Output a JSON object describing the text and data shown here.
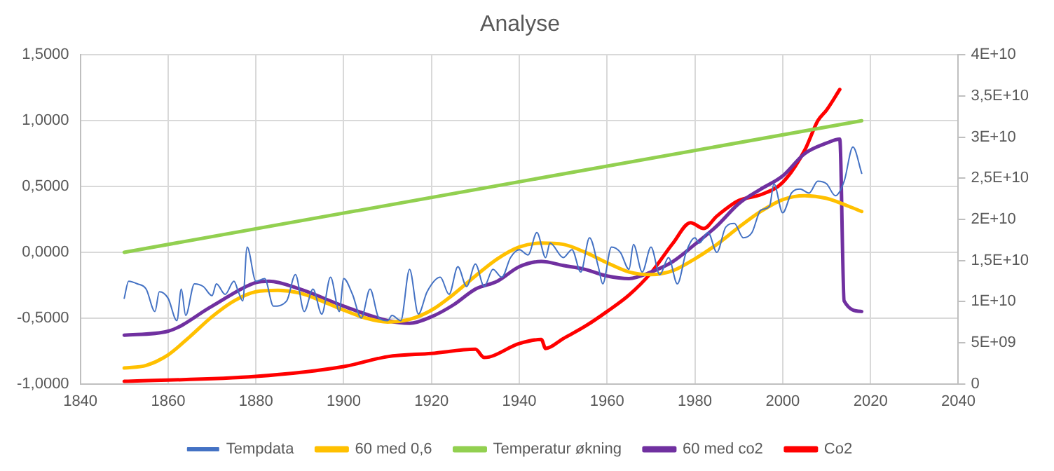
{
  "chart_data": {
    "type": "line",
    "title": "Analyse",
    "legend": "bottom",
    "grid": true,
    "marker": "none",
    "line_style": "solid",
    "xlim": [
      1840,
      2040
    ],
    "xticks": [
      1840,
      1860,
      1880,
      1900,
      1920,
      1940,
      1960,
      1980,
      2000,
      2020,
      2040
    ],
    "ylim": [
      -1,
      1.5
    ],
    "yticks": [
      {
        "value": -1,
        "label": "-1,0000"
      },
      {
        "value": -0.5,
        "label": "-0,5000"
      },
      {
        "value": 0,
        "label": "0,0000"
      },
      {
        "value": 0.5,
        "label": "0,5000"
      },
      {
        "value": 1,
        "label": "1,0000"
      },
      {
        "value": 1.5,
        "label": "1,5000"
      }
    ],
    "y2lim": [
      0,
      40000000000
    ],
    "y2ticks": [
      {
        "value": 0,
        "label": "0"
      },
      {
        "value": 5000000000,
        "label": "5E+09"
      },
      {
        "value": 10000000000,
        "label": "1E+10"
      },
      {
        "value": 15000000000,
        "label": "1,5E+10"
      },
      {
        "value": 20000000000,
        "label": "2E+10"
      },
      {
        "value": 25000000000,
        "label": "2,5E+10"
      },
      {
        "value": 30000000000,
        "label": "3E+10"
      },
      {
        "value": 35000000000,
        "label": "3,5E+10"
      },
      {
        "value": 40000000000,
        "label": "4E+10"
      }
    ],
    "series": [
      {
        "name": "Tempdata",
        "color": "#4472c4",
        "x": [
          1850,
          1851,
          1853,
          1855,
          1857,
          1858,
          1860,
          1862,
          1863,
          1864,
          1866,
          1868,
          1870,
          1871,
          1873,
          1875,
          1876,
          1877,
          1878,
          1880,
          1882,
          1884,
          1887,
          1889,
          1891,
          1893,
          1895,
          1897,
          1899,
          1900,
          1902,
          1904,
          1906,
          1908,
          1910,
          1911,
          1913,
          1915,
          1917,
          1919,
          1922,
          1924,
          1926,
          1928,
          1930,
          1932,
          1934,
          1936,
          1938,
          1940,
          1942,
          1944,
          1946,
          1947,
          1950,
          1952,
          1954,
          1956,
          1958,
          1959,
          1961,
          1963,
          1965,
          1966,
          1968,
          1970,
          1972,
          1974,
          1976,
          1978,
          1980,
          1981,
          1983,
          1985,
          1987,
          1989,
          1991,
          1993,
          1995,
          1997,
          1998,
          2000,
          2002,
          2004,
          2006,
          2008,
          2010,
          2012,
          2014,
          2016,
          2018
        ],
        "values": [
          -0.35,
          -0.22,
          -0.24,
          -0.28,
          -0.45,
          -0.3,
          -0.35,
          -0.52,
          -0.28,
          -0.48,
          -0.24,
          -0.26,
          -0.33,
          -0.24,
          -0.32,
          -0.22,
          -0.3,
          -0.37,
          0.04,
          -0.22,
          -0.2,
          -0.41,
          -0.37,
          -0.17,
          -0.45,
          -0.28,
          -0.47,
          -0.19,
          -0.45,
          -0.2,
          -0.32,
          -0.5,
          -0.28,
          -0.5,
          -0.52,
          -0.48,
          -0.52,
          -0.13,
          -0.47,
          -0.3,
          -0.19,
          -0.32,
          -0.11,
          -0.26,
          -0.09,
          -0.26,
          -0.13,
          -0.19,
          -0.04,
          0.02,
          -0.02,
          0.15,
          -0.04,
          0.07,
          -0.04,
          0.02,
          -0.15,
          0.11,
          -0.11,
          -0.24,
          0.04,
          0,
          -0.13,
          0.06,
          -0.15,
          0.04,
          -0.17,
          -0.04,
          -0.24,
          0,
          0.11,
          0.07,
          0.15,
          0,
          0.19,
          0.22,
          0.11,
          0.15,
          0.32,
          0.35,
          0.52,
          0.3,
          0.45,
          0.48,
          0.45,
          0.54,
          0.52,
          0.43,
          0.54,
          0.8,
          0.6
        ]
      },
      {
        "name": "60 med 0,6",
        "color": "#ffc000",
        "x": [
          1850,
          1855,
          1860,
          1865,
          1870,
          1875,
          1880,
          1885,
          1890,
          1895,
          1900,
          1905,
          1910,
          1915,
          1920,
          1925,
          1930,
          1935,
          1940,
          1945,
          1950,
          1955,
          1960,
          1965,
          1970,
          1975,
          1980,
          1985,
          1990,
          1995,
          2000,
          2005,
          2010,
          2015,
          2018
        ],
        "values": [
          -0.88,
          -0.86,
          -0.78,
          -0.64,
          -0.49,
          -0.37,
          -0.3,
          -0.29,
          -0.31,
          -0.37,
          -0.44,
          -0.5,
          -0.53,
          -0.51,
          -0.44,
          -0.32,
          -0.18,
          -0.05,
          0.04,
          0.07,
          0.06,
          0,
          -0.08,
          -0.15,
          -0.17,
          -0.14,
          -0.05,
          0.06,
          0.19,
          0.31,
          0.4,
          0.43,
          0.41,
          0.35,
          0.31
        ]
      },
      {
        "name": "Temperatur økning",
        "color": "#92d050",
        "x": [
          1850,
          2018
        ],
        "values": [
          0,
          1
        ]
      },
      {
        "name": "60 med co2",
        "color": "#7030a0",
        "x": [
          1850,
          1860,
          1870,
          1880,
          1883,
          1890,
          1900,
          1910,
          1915,
          1920,
          1925,
          1930,
          1935,
          1940,
          1945,
          1950,
          1955,
          1960,
          1965,
          1970,
          1975,
          1980,
          1985,
          1990,
          1995,
          2000,
          2005,
          2010,
          2013,
          2014,
          2018
        ],
        "values": [
          -0.63,
          -0.6,
          -0.41,
          -0.23,
          -0.22,
          -0.28,
          -0.41,
          -0.52,
          -0.54,
          -0.49,
          -0.4,
          -0.28,
          -0.22,
          -0.11,
          -0.07,
          -0.1,
          -0.13,
          -0.18,
          -0.2,
          -0.15,
          -0.07,
          0.06,
          0.2,
          0.37,
          0.48,
          0.58,
          0.75,
          0.83,
          0.86,
          -0.37,
          -0.45
        ]
      },
      {
        "name": "Co2",
        "color": "#ff0000",
        "axis": "y2",
        "x": [
          1850,
          1880,
          1900,
          1910,
          1920,
          1930,
          1932,
          1940,
          1945,
          1946,
          1950,
          1955,
          1960,
          1965,
          1970,
          1975,
          1979,
          1982,
          1985,
          1990,
          1995,
          2000,
          2005,
          2008,
          2010,
          2013
        ],
        "values": [
          300000000,
          900000000,
          2100000000,
          3300000000,
          3700000000,
          4200000000,
          3200000000,
          4900000000,
          5400000000,
          4300000000,
          5500000000,
          7000000000,
          8800000000,
          10800000000,
          13500000000,
          17100000000,
          19600000000,
          18900000000,
          20400000000,
          22300000000,
          23000000000,
          24500000000,
          28400000000,
          32000000000,
          33300000000,
          35800000000
        ]
      }
    ]
  }
}
